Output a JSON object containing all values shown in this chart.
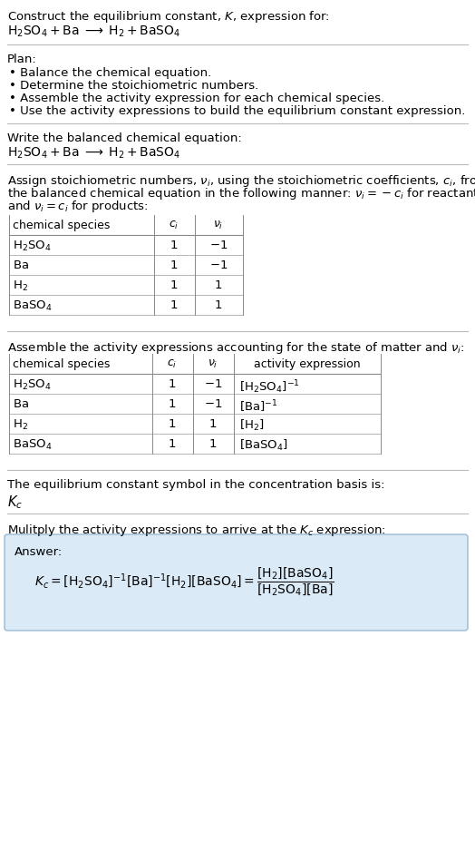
{
  "title_line1": "Construct the equilibrium constant, $K$, expression for:",
  "title_line2": "$\\mathrm{H_2SO_4 + Ba \\;\\longrightarrow\\; H_2 + BaSO_4}$",
  "plan_header": "Plan:",
  "plan_items": [
    "• Balance the chemical equation.",
    "• Determine the stoichiometric numbers.",
    "• Assemble the activity expression for each chemical species.",
    "• Use the activity expressions to build the equilibrium constant expression."
  ],
  "balanced_header": "Write the balanced chemical equation:",
  "balanced_eq": "$\\mathrm{H_2SO_4 + Ba \\;\\longrightarrow\\; H_2 + BaSO_4}$",
  "stoich_intro_lines": [
    "Assign stoichiometric numbers, $\\nu_i$, using the stoichiometric coefficients, $c_i$, from",
    "the balanced chemical equation in the following manner: $\\nu_i = -c_i$ for reactants",
    "and $\\nu_i = c_i$ for products:"
  ],
  "table1_headers": [
    "chemical species",
    "$c_i$",
    "$\\nu_i$"
  ],
  "table1_rows": [
    [
      "$\\mathrm{H_2SO_4}$",
      "1",
      "$-1$"
    ],
    [
      "$\\mathrm{Ba}$",
      "1",
      "$-1$"
    ],
    [
      "$\\mathrm{H_2}$",
      "1",
      "$1$"
    ],
    [
      "$\\mathrm{BaSO_4}$",
      "1",
      "$1$"
    ]
  ],
  "activity_intro": "Assemble the activity expressions accounting for the state of matter and $\\nu_i$:",
  "table2_headers": [
    "chemical species",
    "$c_i$",
    "$\\nu_i$",
    "activity expression"
  ],
  "table2_rows": [
    [
      "$\\mathrm{H_2SO_4}$",
      "1",
      "$-1$",
      "$[\\mathrm{H_2SO_4}]^{-1}$"
    ],
    [
      "$\\mathrm{Ba}$",
      "1",
      "$-1$",
      "$[\\mathrm{Ba}]^{-1}$"
    ],
    [
      "$\\mathrm{H_2}$",
      "1",
      "$1$",
      "$[\\mathrm{H_2}]$"
    ],
    [
      "$\\mathrm{BaSO_4}$",
      "1",
      "$1$",
      "$[\\mathrm{BaSO_4}]$"
    ]
  ],
  "kc_intro": "The equilibrium constant symbol in the concentration basis is:",
  "kc_symbol": "$K_c$",
  "multiply_intro": "Mulitply the activity expressions to arrive at the $K_c$ expression:",
  "answer_label": "Answer:",
  "answer_box_color": "#dbeaf7",
  "answer_box_edge": "#9ab8d0",
  "bg_color": "#ffffff",
  "text_color": "#000000",
  "font_size": 9.5
}
